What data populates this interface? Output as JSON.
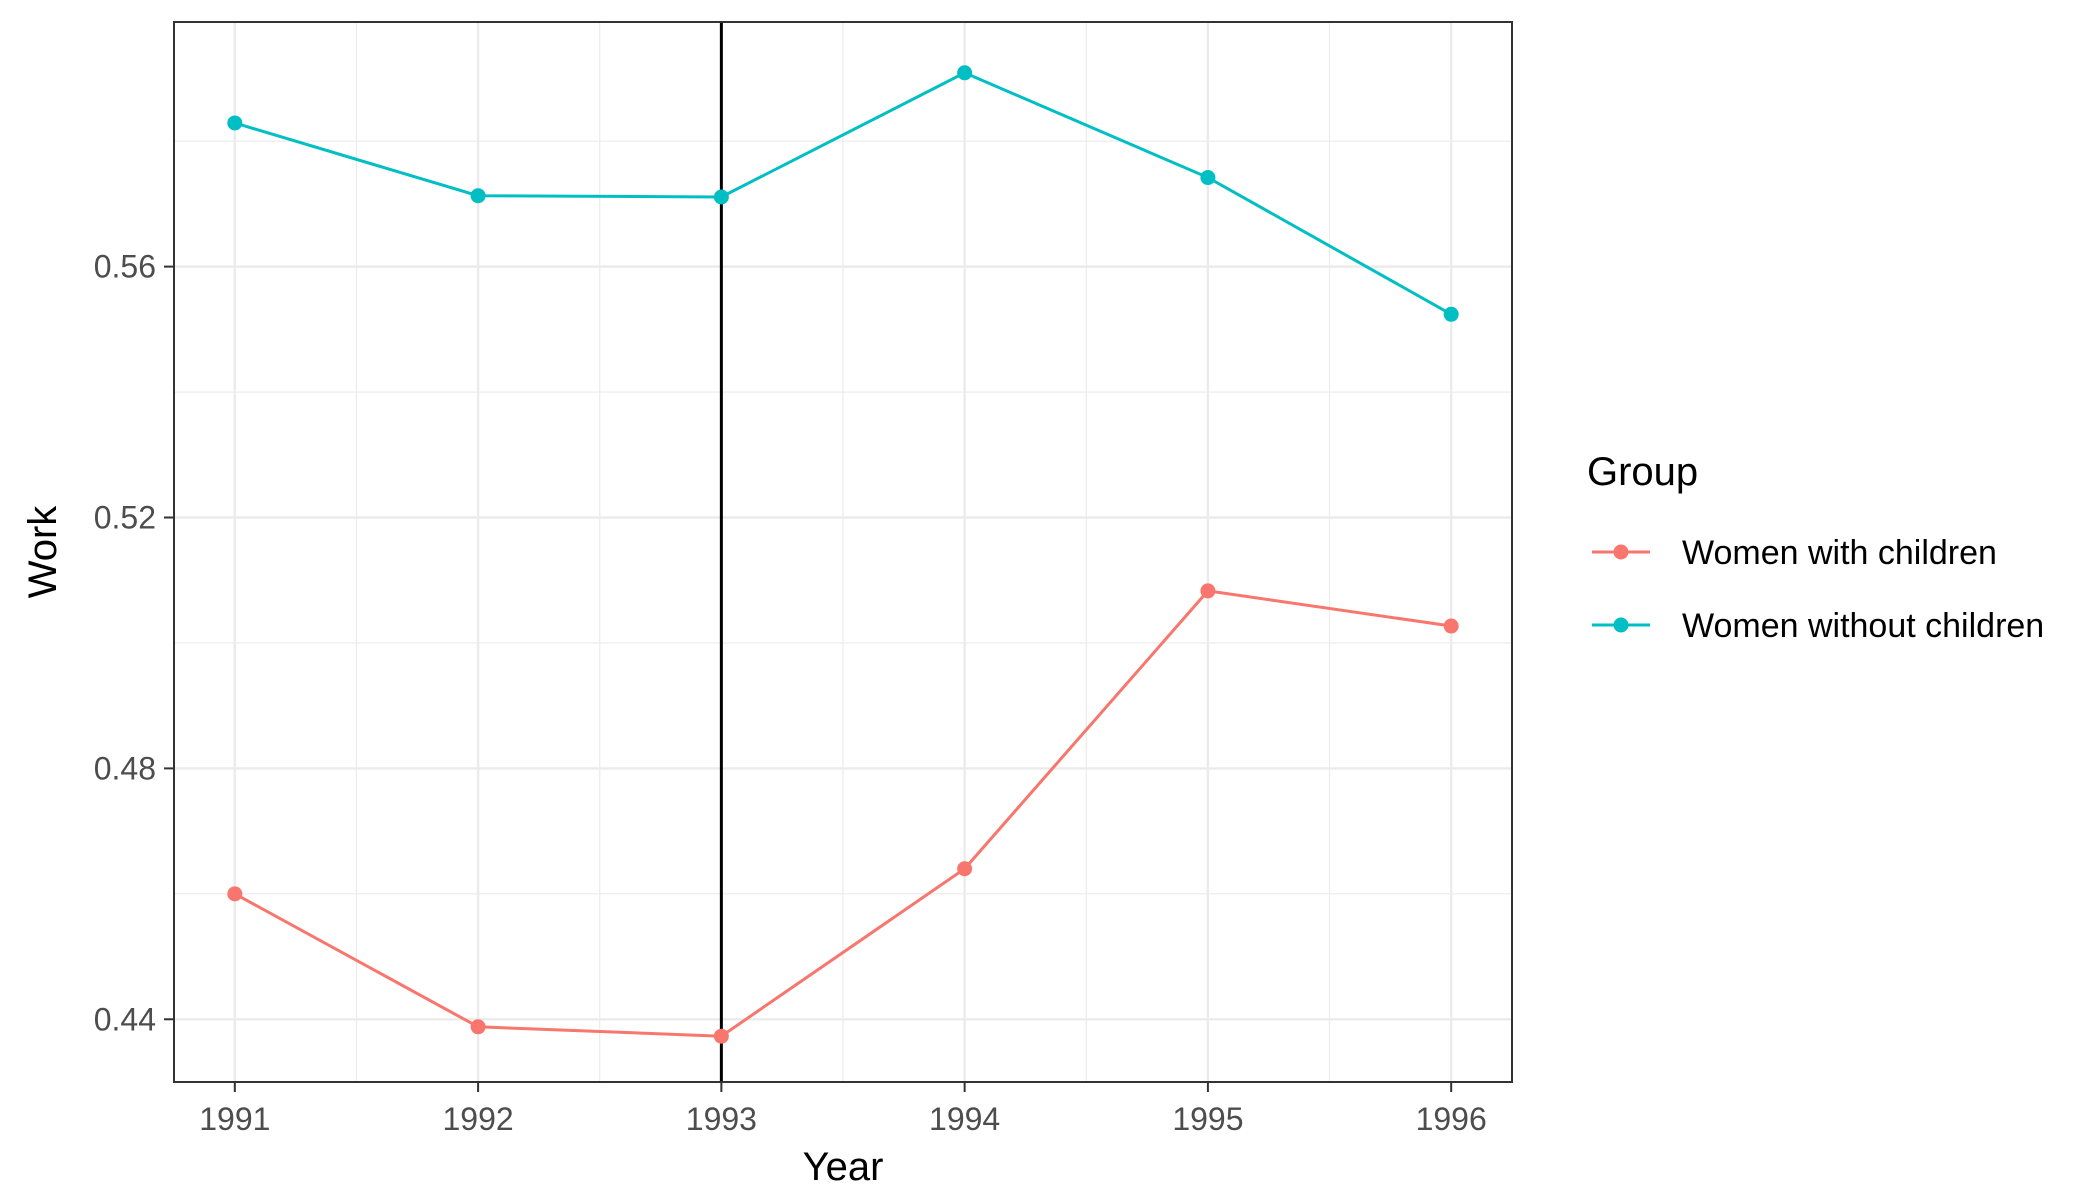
{
  "chart_data": {
    "type": "line",
    "xlabel": "Year",
    "ylabel": "Work",
    "x": [
      1991,
      1992,
      1993,
      1994,
      1995,
      1996
    ],
    "xlim": [
      1990.75,
      1996.25
    ],
    "ylim": [
      0.43,
      0.599
    ],
    "yticks": [
      0.44,
      0.48,
      0.52,
      0.56
    ],
    "ytick_labels": [
      "0.44",
      "0.48",
      "0.52",
      "0.56"
    ],
    "xtick_labels": [
      "1991",
      "1992",
      "1993",
      "1994",
      "1995",
      "1996"
    ],
    "vline": 1993,
    "grid": true,
    "legend": {
      "title": "Group",
      "position": "right"
    },
    "series": [
      {
        "name": "Women with children",
        "color": "#F8766D",
        "values": [
          0.46,
          0.4388,
          0.4373,
          0.464,
          0.5083,
          0.5027
        ]
      },
      {
        "name": "Women without children",
        "color": "#00BFC4",
        "values": [
          0.5829,
          0.5713,
          0.5711,
          0.5909,
          0.5742,
          0.5524
        ]
      }
    ]
  }
}
